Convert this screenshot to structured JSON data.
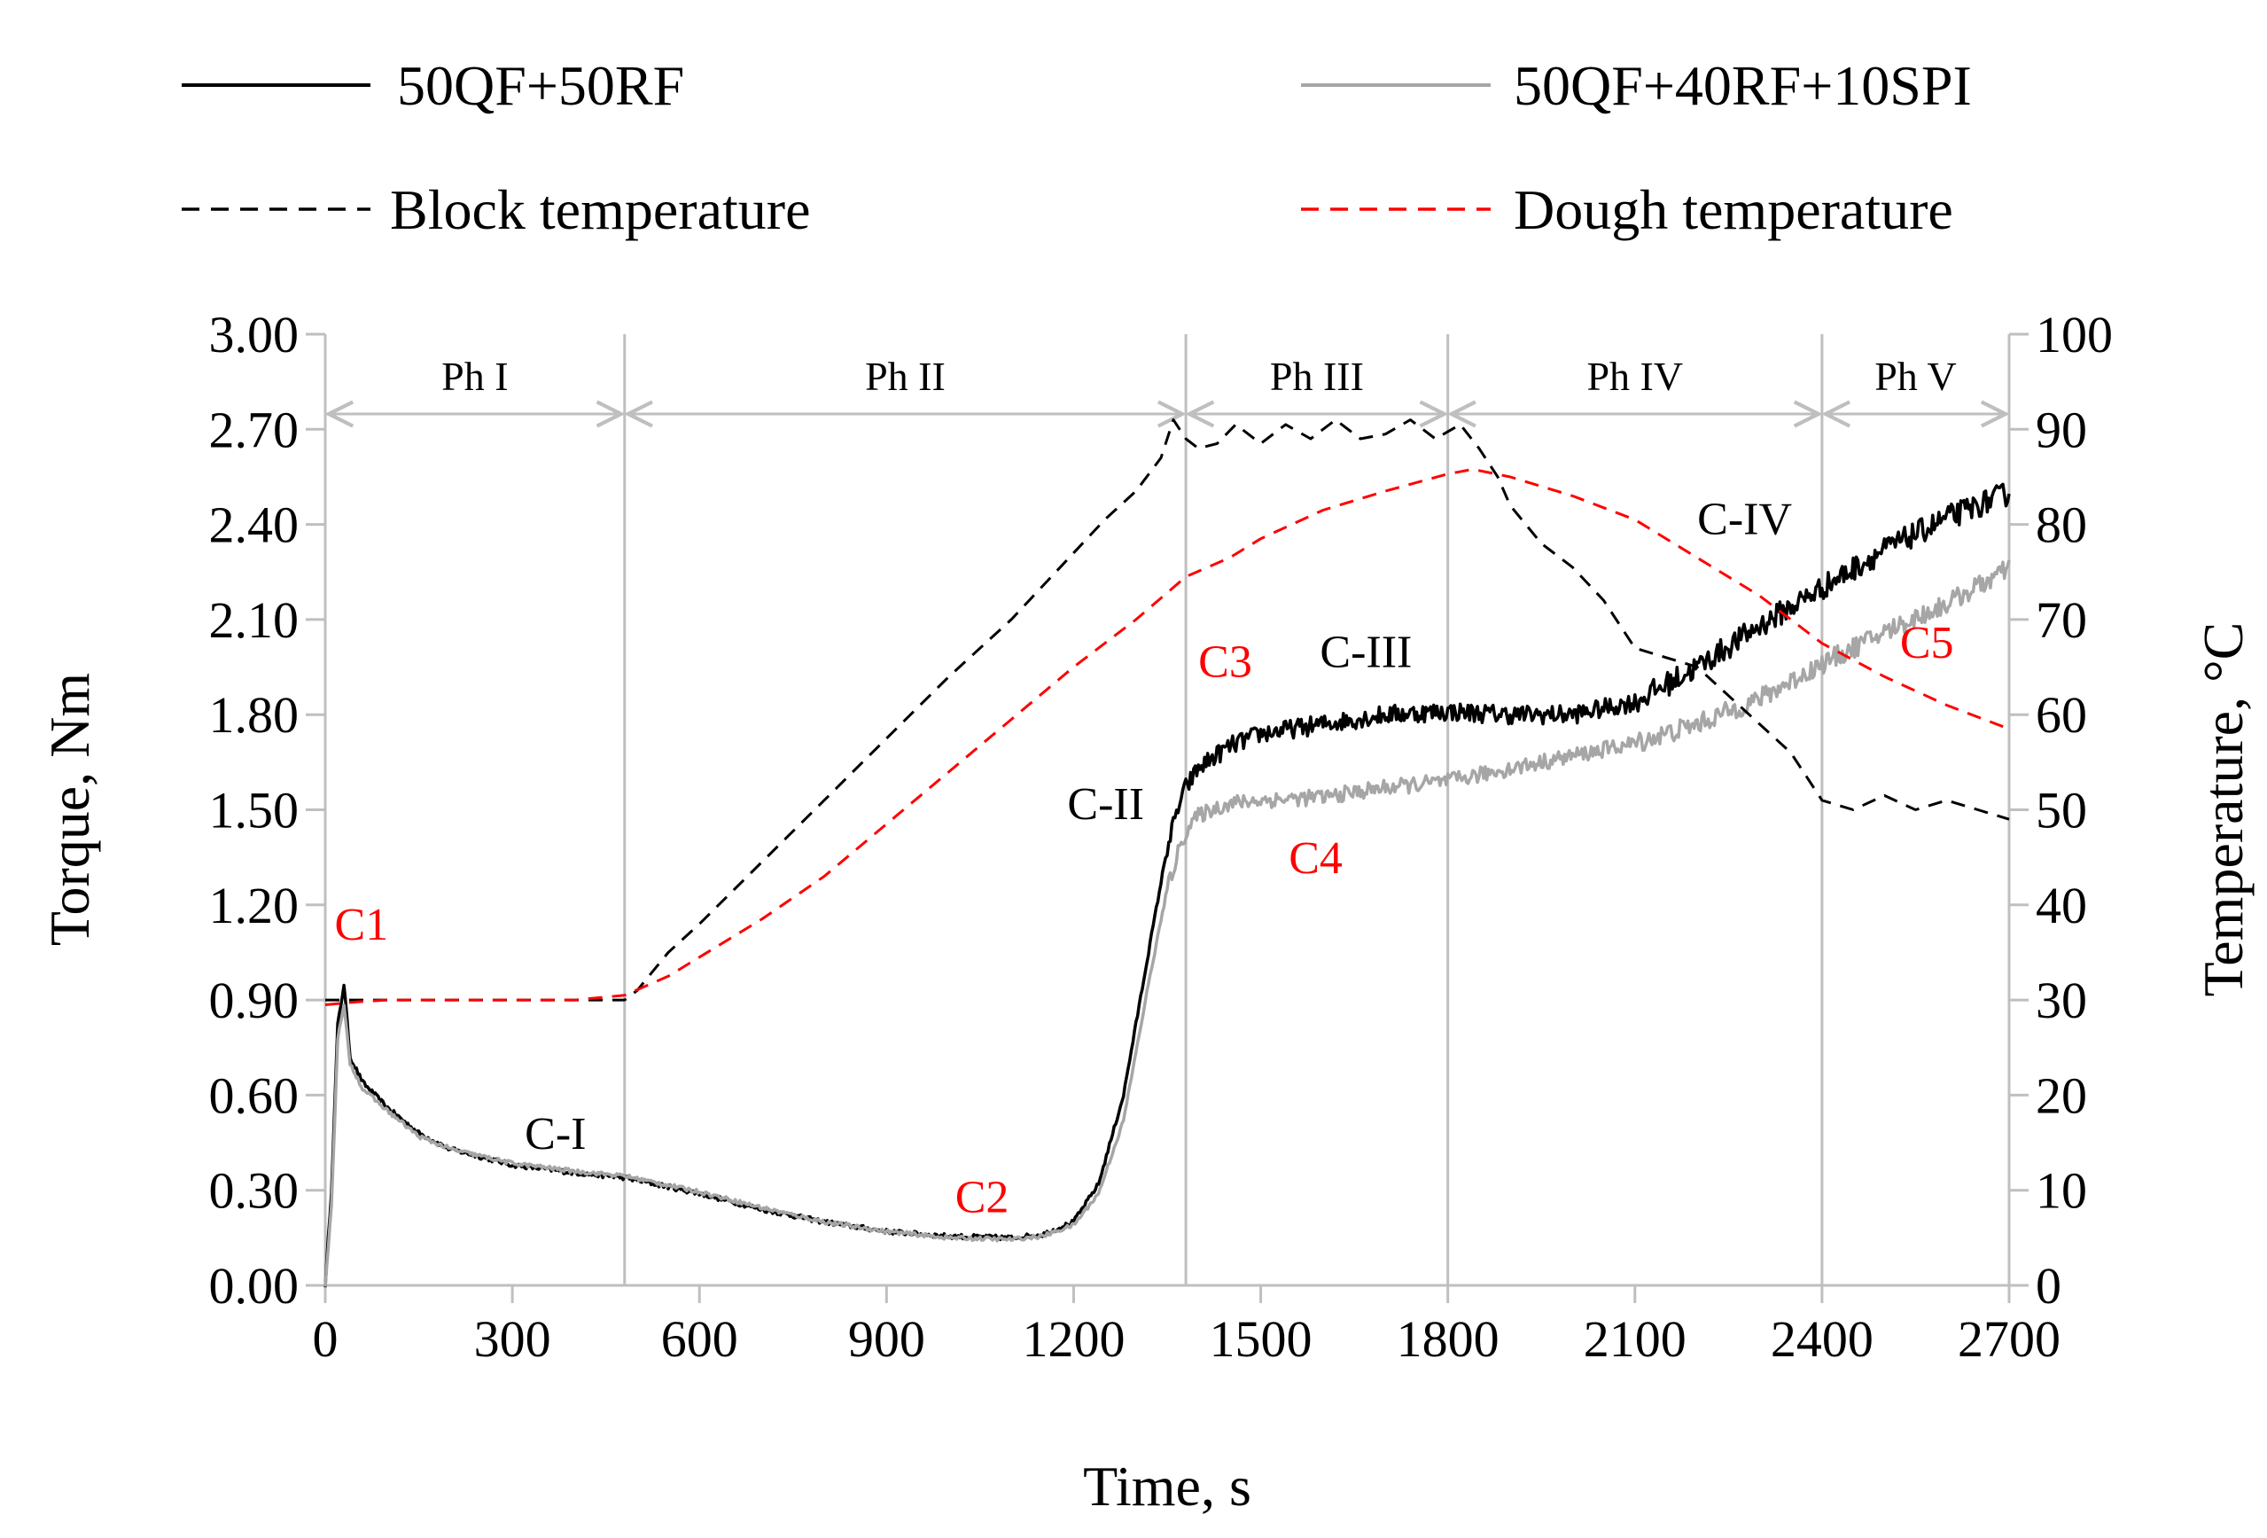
{
  "chart_data": {
    "type": "line",
    "title": "",
    "xlabel": "Time, s",
    "ylabel": "Torque, Nm",
    "y2label": "Temperature, °C",
    "xlim": [
      0,
      2700
    ],
    "ylim": [
      0,
      3.0
    ],
    "y2lim": [
      0,
      100
    ],
    "x_ticks": [
      "0",
      "300",
      "600",
      "900",
      "1200",
      "1500",
      "1800",
      "2100",
      "2400",
      "2700"
    ],
    "y_ticks": [
      "0.00",
      "0.30",
      "0.60",
      "0.90",
      "1.20",
      "1.50",
      "1.80",
      "2.10",
      "2.40",
      "2.70",
      "3.00"
    ],
    "y2_ticks": [
      "0",
      "10",
      "20",
      "30",
      "40",
      "50",
      "60",
      "70",
      "80",
      "90",
      "100"
    ],
    "legend": [
      {
        "label": "50QF+50RF",
        "style": "solid",
        "color": "#000000"
      },
      {
        "label": "50QF+40RF+10SPI",
        "style": "solid",
        "color": "#a6a6a6"
      },
      {
        "label": "Block temperature",
        "style": "dashed",
        "color": "#000000"
      },
      {
        "label": "Dough temperature",
        "style": "dashed",
        "color": "#ff0000"
      }
    ],
    "phases": [
      {
        "label": "Ph I",
        "start": 0,
        "end": 480
      },
      {
        "label": "Ph II",
        "start": 480,
        "end": 1380
      },
      {
        "label": "Ph III",
        "start": 1380,
        "end": 1800
      },
      {
        "label": "Ph IV",
        "start": 1800,
        "end": 2400
      },
      {
        "label": "Ph V",
        "start": 2400,
        "end": 2700
      }
    ],
    "series": [
      {
        "name": "50QF+50RF",
        "axis": "left",
        "color": "#000000",
        "style": "solid",
        "noise": 0.03,
        "x": [
          0,
          10,
          20,
          30,
          40,
          60,
          100,
          150,
          200,
          300,
          400,
          480,
          600,
          700,
          800,
          900,
          1000,
          1100,
          1150,
          1200,
          1240,
          1280,
          1320,
          1350,
          1370,
          1380,
          1390,
          1400,
          1420,
          1450,
          1500,
          1600,
          1700,
          1800,
          1900,
          2000,
          2100,
          2200,
          2300,
          2400,
          2500,
          2600,
          2700
        ],
        "y": [
          0.0,
          0.3,
          0.82,
          0.95,
          0.72,
          0.64,
          0.56,
          0.48,
          0.43,
          0.38,
          0.355,
          0.34,
          0.29,
          0.24,
          0.2,
          0.17,
          0.155,
          0.15,
          0.16,
          0.2,
          0.32,
          0.6,
          1.05,
          1.38,
          1.52,
          1.57,
          1.6,
          1.63,
          1.66,
          1.7,
          1.74,
          1.77,
          1.8,
          1.81,
          1.8,
          1.8,
          1.84,
          1.95,
          2.08,
          2.2,
          2.32,
          2.42,
          2.5
        ]
      },
      {
        "name": "50QF+40RF+10SPI",
        "axis": "left",
        "color": "#a6a6a6",
        "style": "solid",
        "noise": 0.025,
        "x": [
          0,
          10,
          20,
          30,
          40,
          60,
          100,
          150,
          200,
          300,
          400,
          480,
          600,
          700,
          800,
          900,
          1000,
          1100,
          1150,
          1200,
          1240,
          1280,
          1320,
          1350,
          1370,
          1380,
          1390,
          1400,
          1420,
          1450,
          1500,
          1600,
          1700,
          1800,
          1900,
          2000,
          2100,
          2200,
          2300,
          2400,
          2500,
          2600,
          2700
        ],
        "y": [
          0.0,
          0.25,
          0.78,
          0.88,
          0.7,
          0.62,
          0.55,
          0.47,
          0.43,
          0.385,
          0.36,
          0.345,
          0.295,
          0.245,
          0.2,
          0.17,
          0.15,
          0.145,
          0.155,
          0.19,
          0.29,
          0.52,
          0.95,
          1.25,
          1.38,
          1.43,
          1.46,
          1.48,
          1.5,
          1.52,
          1.53,
          1.54,
          1.57,
          1.59,
          1.63,
          1.67,
          1.71,
          1.77,
          1.85,
          1.96,
          2.06,
          2.15,
          2.26
        ]
      },
      {
        "name": "Block temperature",
        "axis": "right",
        "color": "#000000",
        "style": "dashed",
        "x": [
          0,
          480,
          500,
          550,
          600,
          700,
          800,
          900,
          1000,
          1100,
          1200,
          1250,
          1300,
          1340,
          1360,
          1380,
          1400,
          1430,
          1460,
          1500,
          1540,
          1580,
          1620,
          1660,
          1700,
          1740,
          1780,
          1820,
          1850,
          1880,
          1900,
          1950,
          2000,
          2050,
          2080,
          2100,
          2150,
          2200,
          2250,
          2300,
          2350,
          2400,
          2450,
          2500,
          2550,
          2600,
          2650,
          2700
        ],
        "y": [
          30,
          30,
          31,
          35,
          38,
          44.5,
          51,
          57.5,
          64,
          70,
          77,
          80.5,
          83.5,
          87,
          91,
          89,
          88,
          88.5,
          90.5,
          88.5,
          90.5,
          89,
          91,
          89,
          89.5,
          91,
          89,
          90.5,
          88,
          85,
          82,
          78,
          75.5,
          72,
          69,
          67,
          66,
          65,
          62,
          59,
          56,
          51,
          50,
          51.5,
          50,
          51,
          50,
          49
        ]
      },
      {
        "name": "Dough temperature",
        "axis": "right",
        "color": "#ff0000",
        "style": "dashed",
        "x": [
          0,
          50,
          100,
          200,
          300,
          400,
          480,
          550,
          600,
          700,
          800,
          900,
          1000,
          1100,
          1200,
          1300,
          1380,
          1450,
          1500,
          1600,
          1700,
          1800,
          1840,
          1900,
          2000,
          2100,
          2200,
          2300,
          2400,
          2500,
          2600,
          2700
        ],
        "y": [
          29.5,
          29.8,
          30,
          30,
          30,
          30,
          30.5,
          32.5,
          34.5,
          38.5,
          43,
          48.5,
          54,
          59.5,
          65,
          70,
          74.5,
          76.5,
          78.5,
          81.5,
          83.5,
          85.3,
          85.8,
          85,
          83,
          80.5,
          76.5,
          72.5,
          67.5,
          64,
          61,
          58.5
        ]
      }
    ],
    "annotations": [
      {
        "text": "C1",
        "x": 15,
        "y": 1.09,
        "color": "#ff0000"
      },
      {
        "text": "C-I",
        "x": 320,
        "y": 0.43,
        "color": "#000000"
      },
      {
        "text": "C2",
        "x": 1010,
        "y": 0.23,
        "color": "#ff0000"
      },
      {
        "text": "C-II",
        "x": 1190,
        "y": 1.47,
        "color": "#000000"
      },
      {
        "text": "C3",
        "x": 1400,
        "y": 1.92,
        "color": "#ff0000"
      },
      {
        "text": "C-III",
        "x": 1595,
        "y": 1.95,
        "color": "#000000"
      },
      {
        "text": "C4",
        "x": 1545,
        "y": 1.3,
        "color": "#ff0000"
      },
      {
        "text": "C-IV",
        "x": 2200,
        "y": 2.37,
        "color": "#000000"
      },
      {
        "text": "C5",
        "x": 2525,
        "y": 1.98,
        "color": "#ff0000"
      }
    ]
  }
}
